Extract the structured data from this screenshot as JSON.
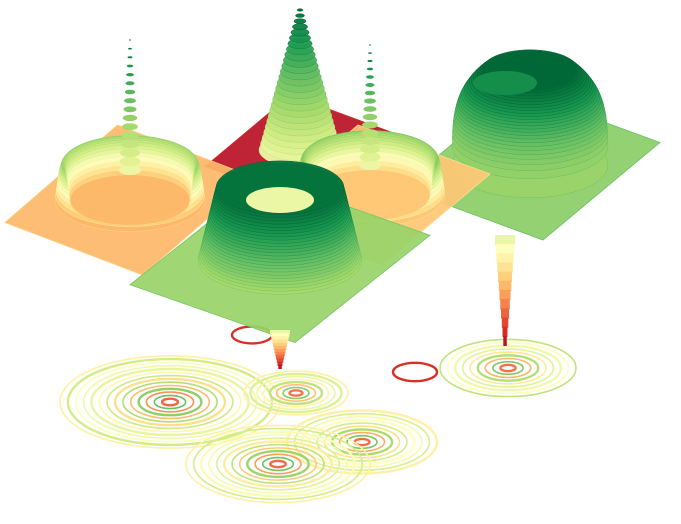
{
  "chart_data": {
    "type": "3d-surface-with-contours",
    "colormap": "RdYlGn",
    "colormap_stops": [
      "#a50026",
      "#d73027",
      "#f46d43",
      "#fdae61",
      "#fee08b",
      "#ffffbf",
      "#d9ef8b",
      "#a6d96a",
      "#66bd63",
      "#1a9850",
      "#006837"
    ],
    "axes_visible": false,
    "grid": false,
    "title": "",
    "surfaces": [
      {
        "name": "",
        "shape": "ring-with-spike",
        "zrange": [
          -1,
          1
        ],
        "contour_rings": 10
      },
      {
        "name": "",
        "shape": "tall-peak",
        "zrange": [
          -1,
          1
        ],
        "contour_rings": 6
      },
      {
        "name": "",
        "shape": "plateau-crater",
        "zrange": [
          -1,
          1
        ],
        "contour_rings": 8
      },
      {
        "name": "",
        "shape": "ring-with-spike",
        "zrange": [
          -1,
          1
        ],
        "contour_rings": 8
      },
      {
        "name": "",
        "shape": "crater-with-pit",
        "zrange": [
          -1,
          1
        ],
        "contour_rings": 9
      }
    ]
  }
}
